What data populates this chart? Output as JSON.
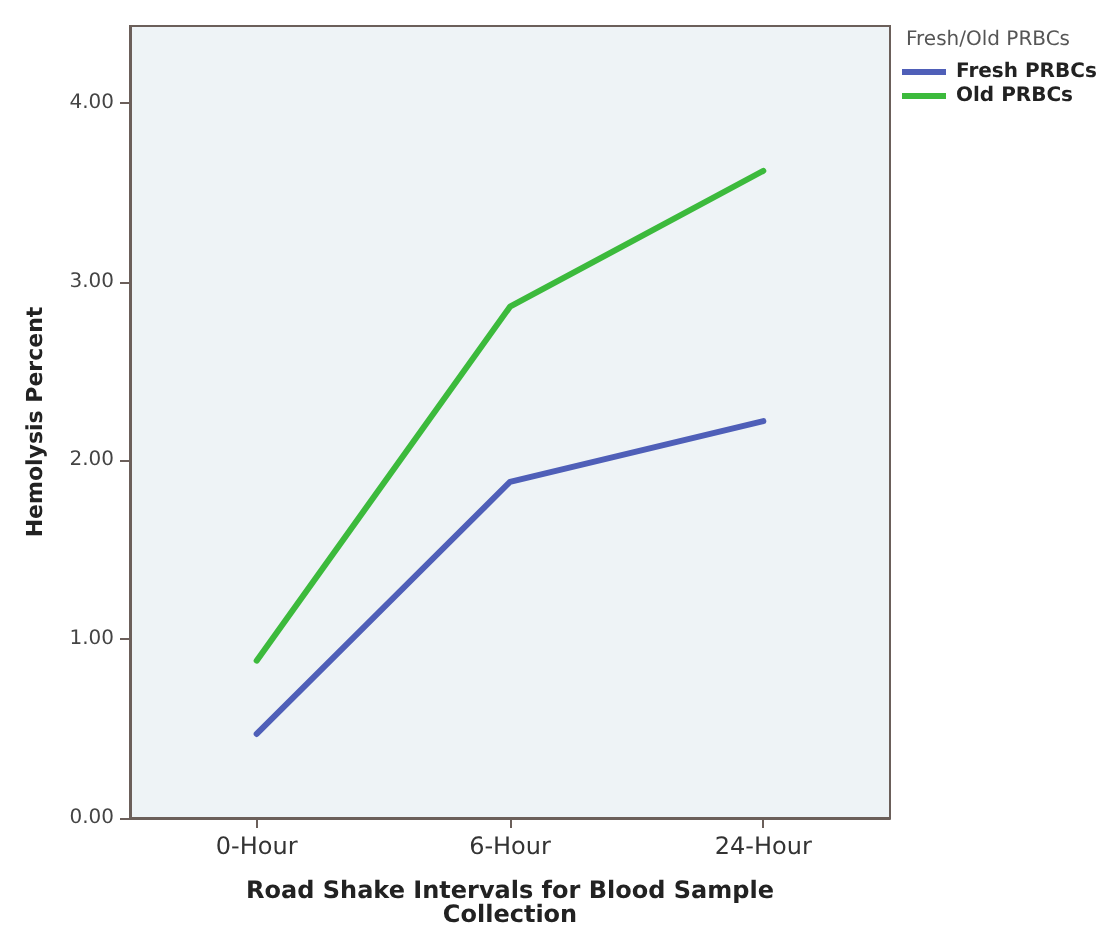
{
  "chart_data": {
    "type": "line",
    "xlabel": "Road Shake Intervals for Blood Sample\nCollection",
    "ylabel": "Hemolysis Percent",
    "legend_title": "Fresh/Old PRBCs",
    "categories": [
      "0-Hour",
      "6-Hour",
      "24-Hour"
    ],
    "series": [
      {
        "name": "Fresh PRBCs",
        "color": "#4f5fb8",
        "values": [
          0.47,
          1.88,
          2.22
        ]
      },
      {
        "name": "Old PRBCs",
        "color": "#3cba3c",
        "values": [
          0.88,
          2.86,
          3.62
        ]
      }
    ],
    "ylim": [
      0,
      4.43
    ],
    "yticks": [
      {
        "value": 0,
        "label": "0.00"
      },
      {
        "value": 1,
        "label": "1.00"
      },
      {
        "value": 2,
        "label": "2.00"
      },
      {
        "value": 3,
        "label": "3.00"
      },
      {
        "value": 4,
        "label": "4.00"
      }
    ],
    "grid": false,
    "legend": "top right",
    "marker": "none",
    "line_style": "solid"
  }
}
